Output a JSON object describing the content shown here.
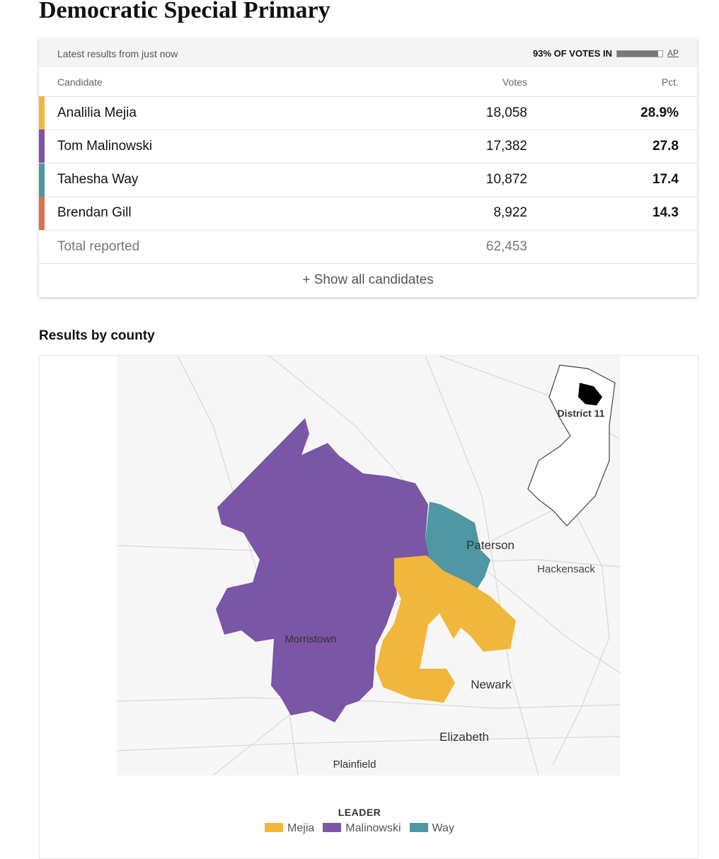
{
  "title": "Democratic Special Primary",
  "results": {
    "updated": "Latest results from just now",
    "reporting": "93% OF VOTES IN",
    "source": "AP",
    "columns": [
      "Candidate",
      "Votes",
      "Pct."
    ],
    "rows": [
      {
        "name": "Analilia Mejia",
        "votes": "18,058",
        "pct": "28.9%",
        "color": "#f0b73c"
      },
      {
        "name": "Tom Malinowski",
        "votes": "17,382",
        "pct": "27.8",
        "color": "#7b55a6"
      },
      {
        "name": "Tahesha Way",
        "votes": "10,872",
        "pct": "17.4",
        "color": "#4e97a3"
      },
      {
        "name": "Brendan Gill",
        "votes": "8,922",
        "pct": "14.3",
        "color": "#d9714e"
      }
    ],
    "total": {
      "label": "Total reported",
      "votes": "62,453"
    },
    "show_all": "+ Show all candidates"
  },
  "county": {
    "heading": "Results by county",
    "inset_label": "District 11",
    "places": [
      "Paterson",
      "Hackensack",
      "Morristown",
      "Newark",
      "Elizabeth",
      "Plainfield"
    ],
    "legend": {
      "title": "LEADER",
      "items": [
        {
          "name": "Mejia",
          "color": "#f0b73c"
        },
        {
          "name": "Malinowski",
          "color": "#7b55a6"
        },
        {
          "name": "Way",
          "color": "#4e97a3"
        }
      ]
    }
  }
}
